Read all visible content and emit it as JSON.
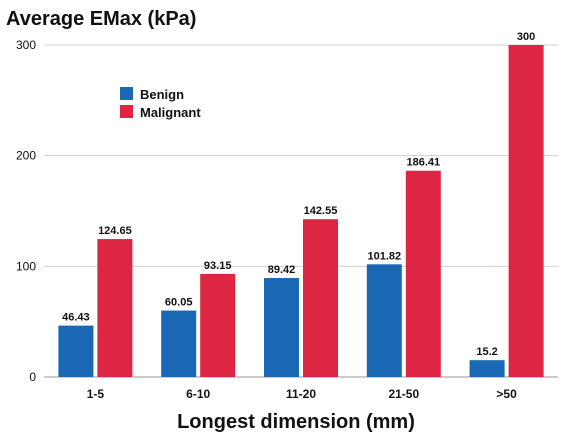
{
  "chart_data": {
    "type": "bar",
    "title": "Average EMax (kPa)",
    "xlabel": "Longest dimension (mm)",
    "ylabel": "",
    "categories": [
      "1-5",
      "6-10",
      "11-20",
      "21-50",
      ">50"
    ],
    "series": [
      {
        "name": "Benign",
        "color": "#1a67b4",
        "values": [
          46.43,
          60.05,
          89.42,
          101.82,
          15.2
        ],
        "labels": [
          "46.43",
          "60.05",
          "89.42",
          "101.82",
          "15.2"
        ]
      },
      {
        "name": "Malignant",
        "color": "#dc2643",
        "values": [
          124.65,
          93.15,
          142.55,
          186.41,
          300
        ],
        "labels": [
          "124.65",
          "93.15",
          "142.55",
          "186.41",
          "300"
        ]
      }
    ],
    "ylim": [
      0,
      300
    ],
    "yticks": [
      0,
      100,
      200,
      300
    ],
    "grid": true,
    "legend_position": "top-left"
  }
}
